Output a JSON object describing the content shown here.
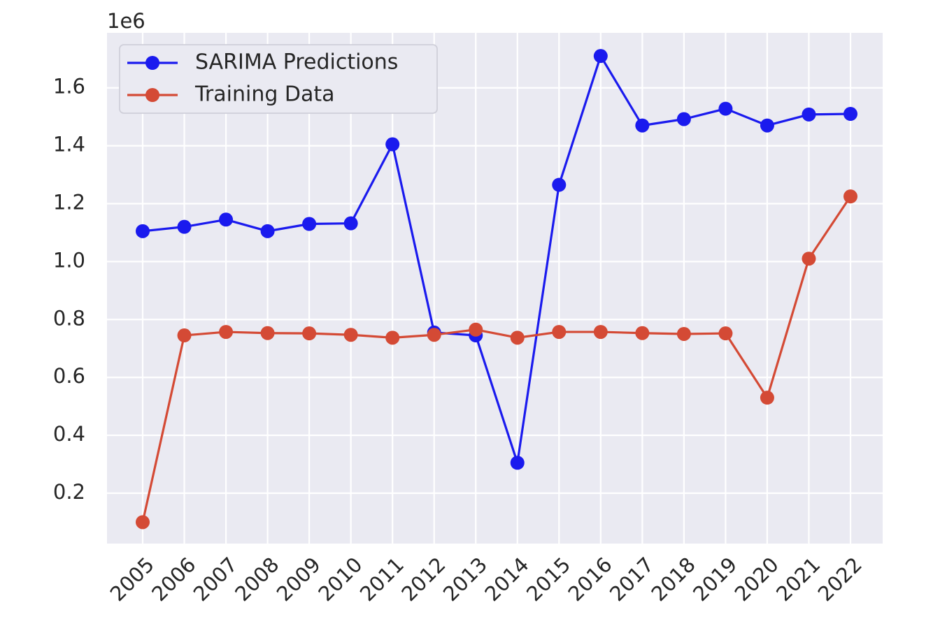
{
  "chart_data": {
    "type": "line",
    "x": [
      "2005",
      "2006",
      "2007",
      "2008",
      "2009",
      "2010",
      "2011",
      "2012",
      "2013",
      "2014",
      "2015",
      "2016",
      "2017",
      "2018",
      "2019",
      "2020",
      "2021",
      "2022"
    ],
    "series": [
      {
        "name": "SARIMA Predictions",
        "color": "#1a1aee",
        "values": [
          1105000,
          1120000,
          1145000,
          1105000,
          1130000,
          1132000,
          1405000,
          755000,
          745000,
          305000,
          1265000,
          1710000,
          1470000,
          1492000,
          1528000,
          1470000,
          1508000,
          1510000
        ]
      },
      {
        "name": "Training Data",
        "color": "#d44a35",
        "values": [
          100000,
          745000,
          757000,
          753000,
          752000,
          747000,
          737000,
          747000,
          765000,
          737000,
          757000,
          757000,
          753000,
          750000,
          752000,
          530000,
          1010000,
          1225000
        ]
      }
    ],
    "y_offset_label": "1e6",
    "yticks": [
      "0.2",
      "0.4",
      "0.6",
      "0.8",
      "1.0",
      "1.2",
      "1.4",
      "1.6"
    ],
    "ytick_values": [
      200000,
      400000,
      600000,
      800000,
      1000000,
      1200000,
      1400000,
      1600000
    ],
    "ylim": [
      26000,
      1790000
    ],
    "xlabel": "",
    "ylabel": "",
    "title": "",
    "grid": true,
    "legend_position": "top-left",
    "style": {
      "axes_background": "#eaeaf2",
      "grid_color": "#ffffff",
      "text_color": "#262626"
    }
  }
}
